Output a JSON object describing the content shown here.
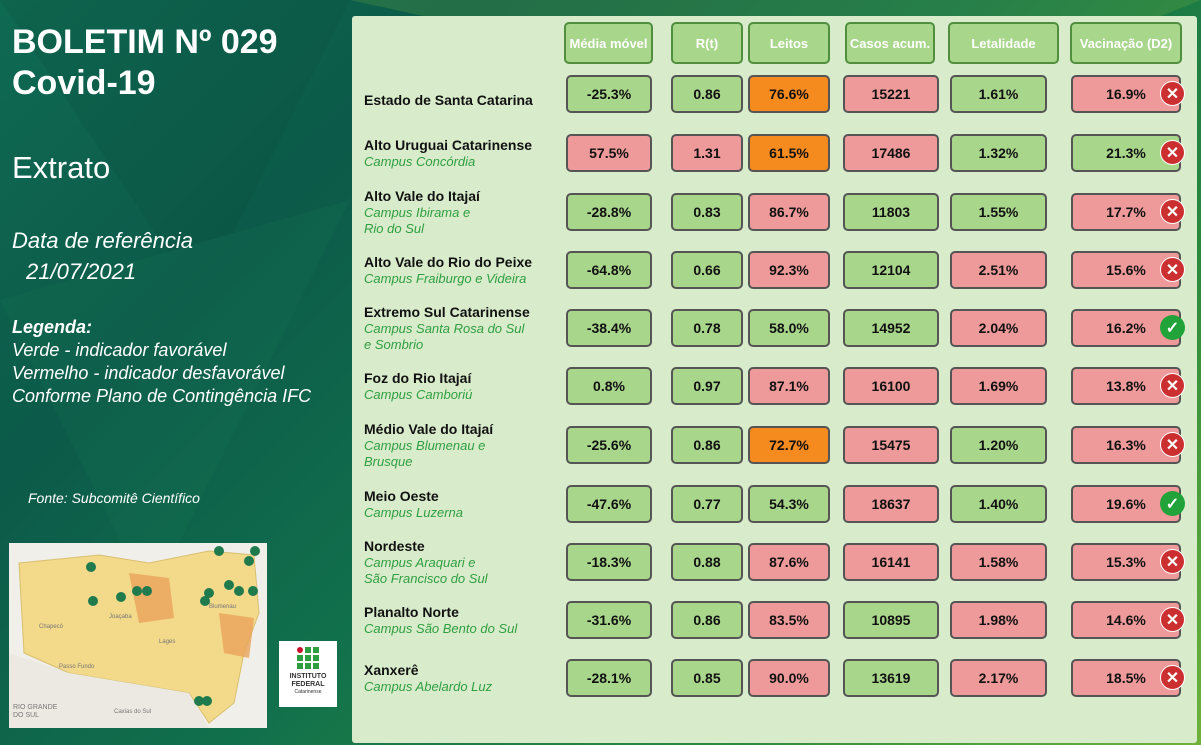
{
  "title_line1": "BOLETIM Nº 029",
  "title_line2": "Covid-19",
  "subtitle": "Extrato",
  "ref_label": "Data de referência",
  "ref_date": "21/07/2021",
  "legend": {
    "title": "Legenda:",
    "line1": "Verde - indicador favorável",
    "line2": "Vermelho - indicador desfavorável",
    "line3": "Conforme Plano de Contingência IFC"
  },
  "source": "Fonte: Subcomitê Científico",
  "logo": {
    "line1": "INSTITUTO",
    "line2": "FEDERAL",
    "line3": "Catarinense"
  },
  "map": {
    "label1": "RIO GRANDE",
    "label2": "DO SUL",
    "label3": "Passo Fundo",
    "label4": "Caxias do Sul",
    "label5": "Chapecó",
    "label6": "Joaçaba",
    "label7": "Blumenau",
    "label8": "Lages"
  },
  "headers": [
    "Média móvel",
    "R(t)",
    "Leitos",
    "Casos acum.",
    "Letalidade",
    "Vacinação (D2)"
  ],
  "colors": {
    "green": "#a8d68b",
    "red": "#ef9a9a",
    "orange": "#f58a1f",
    "ok": "#22a33a",
    "bad": "#cc2f2f"
  },
  "rows": [
    {
      "name": "Estado de Santa Catarina",
      "campus": "",
      "values": [
        "-25.3%",
        "0.86",
        "76.6%",
        "15221",
        "1.61%",
        "16.9%"
      ],
      "status": [
        "g",
        "g",
        "o",
        "r",
        "g",
        "r"
      ],
      "icon": "x-icon"
    },
    {
      "name": "Alto Uruguai Catarinense",
      "campus": "Campus Concórdia",
      "values": [
        "57.5%",
        "1.31",
        "61.5%",
        "17486",
        "1.32%",
        "21.3%"
      ],
      "status": [
        "r",
        "r",
        "o",
        "r",
        "g",
        "g"
      ],
      "icon": "x-icon"
    },
    {
      "name": "Alto Vale do Itajaí",
      "campus": "Campus Ibirama e\nRio do Sul",
      "values": [
        "-28.8%",
        "0.83",
        "86.7%",
        "11803",
        "1.55%",
        "17.7%"
      ],
      "status": [
        "g",
        "g",
        "r",
        "g",
        "g",
        "r"
      ],
      "icon": "x-icon"
    },
    {
      "name": "Alto Vale do Rio do Peixe",
      "campus": "Campus Fraiburgo e Videira",
      "values": [
        "-64.8%",
        "0.66",
        "92.3%",
        "12104",
        "2.51%",
        "15.6%"
      ],
      "status": [
        "g",
        "g",
        "r",
        "g",
        "r",
        "r"
      ],
      "icon": "x-icon"
    },
    {
      "name": "Extremo Sul Catarinense",
      "campus": "Campus Santa Rosa do Sul\ne Sombrio",
      "values": [
        "-38.4%",
        "0.78",
        "58.0%",
        "14952",
        "2.04%",
        "16.2%"
      ],
      "status": [
        "g",
        "g",
        "g",
        "g",
        "r",
        "r"
      ],
      "icon": "check-icon"
    },
    {
      "name": "Foz do Rio Itajaí",
      "campus": "Campus Camboriú",
      "values": [
        "0.8%",
        "0.97",
        "87.1%",
        "16100",
        "1.69%",
        "13.8%"
      ],
      "status": [
        "g",
        "g",
        "r",
        "r",
        "r",
        "r"
      ],
      "icon": "x-icon"
    },
    {
      "name": "Médio Vale do Itajaí",
      "campus": "Campus Blumenau e\n Brusque",
      "values": [
        "-25.6%",
        "0.86",
        "72.7%",
        "15475",
        "1.20%",
        "16.3%"
      ],
      "status": [
        "g",
        "g",
        "o",
        "r",
        "g",
        "r"
      ],
      "icon": "x-icon"
    },
    {
      "name": "Meio Oeste",
      "campus": "Campus Luzerna",
      "values": [
        "-47.6%",
        "0.77",
        "54.3%",
        "18637",
        "1.40%",
        "19.6%"
      ],
      "status": [
        "g",
        "g",
        "g",
        "r",
        "g",
        "r"
      ],
      "icon": "check-icon"
    },
    {
      "name": "Nordeste",
      "campus": "Campus Araquari e\nSão Francisco do Sul",
      "values": [
        "-18.3%",
        "0.88",
        "87.6%",
        "16141",
        "1.58%",
        "15.3%"
      ],
      "status": [
        "g",
        "g",
        "r",
        "r",
        "r",
        "r"
      ],
      "icon": "x-icon"
    },
    {
      "name": "Planalto Norte",
      "campus": "Campus São Bento do Sul",
      "values": [
        "-31.6%",
        "0.86",
        "83.5%",
        "10895",
        "1.98%",
        "14.6%"
      ],
      "status": [
        "g",
        "g",
        "r",
        "g",
        "r",
        "r"
      ],
      "icon": "x-icon"
    },
    {
      "name": "Xanxerê",
      "campus": "Campus Abelardo Luz",
      "values": [
        "-28.1%",
        "0.85",
        "90.0%",
        "13619",
        "2.17%",
        "18.5%"
      ],
      "status": [
        "g",
        "g",
        "r",
        "g",
        "r",
        "r"
      ],
      "icon": "x-icon"
    }
  ]
}
